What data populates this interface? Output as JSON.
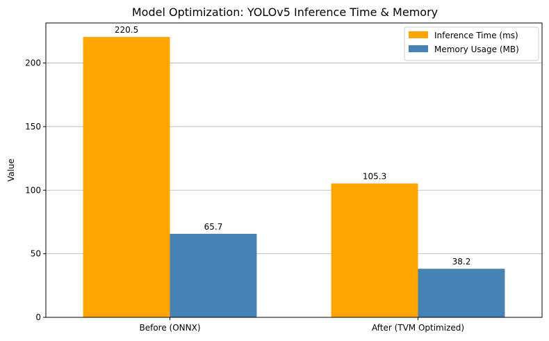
{
  "chart_data": {
    "type": "bar",
    "title": "Model Optimization: YOLOv5 Inference Time & Memory",
    "xlabel": "",
    "ylabel": "Value",
    "categories": [
      "Before (ONNX)",
      "After (TVM Optimized)"
    ],
    "series": [
      {
        "name": "Inference Time (ms)",
        "values": [
          220.5,
          105.3
        ],
        "color": "#FFA500"
      },
      {
        "name": "Memory Usage (MB)",
        "values": [
          65.7,
          38.2
        ],
        "color": "#4682B4"
      }
    ],
    "ylim": [
      0,
      231.5
    ],
    "yticks": [
      0,
      50,
      100,
      150,
      200
    ],
    "grid": "y",
    "legend_position": "top-right"
  }
}
